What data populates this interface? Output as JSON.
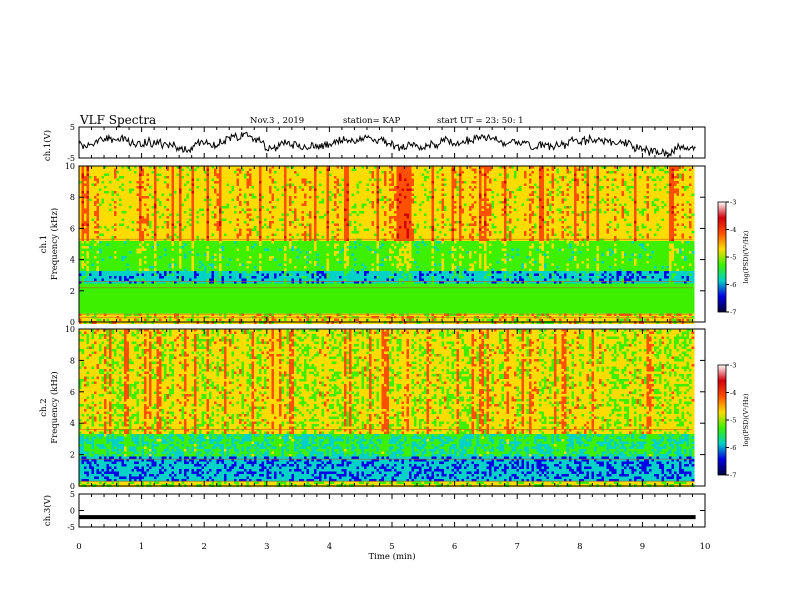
{
  "header": {
    "title": "VLF Spectra",
    "date": "Nov.3 , 2019",
    "station": "station= KAP",
    "start": "start UT = 23: 50: 1"
  },
  "colors": {
    "cmap": [
      "#ffffff",
      "#d2000c",
      "#ff5000",
      "#ffdc00",
      "#3cf000",
      "#00d2c8",
      "#0000e6",
      "#00003c"
    ],
    "trace": "#000000",
    "frame": "#000000"
  },
  "chart_data": [
    {
      "type": "line",
      "panel": "ch1-waveform",
      "ylabel": "ch.1(V)",
      "ylim": [
        -5,
        5
      ],
      "yticks": [
        "5",
        "-5"
      ],
      "xlim": [
        0,
        10
      ],
      "series": [
        {
          "values": []
        }
      ]
    },
    {
      "type": "heatmap",
      "panel": "ch1-spectrogram",
      "ylabel": "ch.1 Frequency (kHz)",
      "ylim": [
        0,
        10
      ],
      "yticks": [
        "0",
        "2",
        "4",
        "6",
        "8",
        "10"
      ],
      "xlim": [
        0,
        10
      ],
      "data_end_min": 9.8,
      "colorbar": {
        "label": "log(PSD)(V²/Hz)",
        "range": [
          -7,
          -3
        ],
        "ticks": [
          "-3",
          "-4",
          "-5",
          "-6",
          "-7"
        ]
      }
    },
    {
      "type": "heatmap",
      "panel": "ch2-spectrogram",
      "ylabel": "ch.2 Frequency (kHz)",
      "ylim": [
        0,
        10
      ],
      "yticks": [
        "0",
        "2",
        "4",
        "6",
        "8",
        "10"
      ],
      "xlim": [
        0,
        10
      ],
      "data_end_min": 9.8,
      "colorbar": {
        "label": "log(PSD)(V²/Hz)",
        "range": [
          -7,
          -3
        ],
        "ticks": [
          "-3",
          "-4",
          "-5",
          "-6",
          "-7"
        ]
      }
    },
    {
      "type": "line",
      "panel": "ch3-waveform",
      "ylabel": "ch.3(V)",
      "ylim": [
        -5,
        5
      ],
      "yticks": [
        "5",
        "0",
        "-5"
      ],
      "xlim": [
        0,
        10
      ],
      "series": [
        {
          "values": [
            -2,
            -2
          ]
        }
      ],
      "xlabel": "Time (min)",
      "xticks": [
        "0",
        "1",
        "2",
        "3",
        "4",
        "5",
        "6",
        "7",
        "8",
        "9",
        "10"
      ]
    }
  ]
}
